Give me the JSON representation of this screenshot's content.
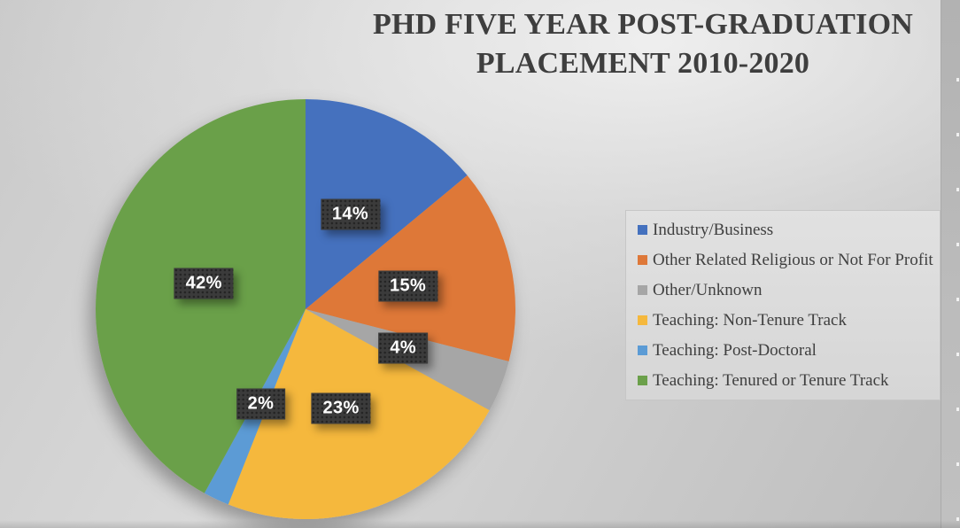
{
  "title": {
    "line1": "PHD FIVE YEAR POST-GRADUATION",
    "line2": "PLACEMENT 2010-2020"
  },
  "chart_data": {
    "type": "pie",
    "title": "PHD FIVE YEAR POST-GRADUATION PLACEMENT 2010-2020",
    "start_angle_deg": 0,
    "direction": "clockwise",
    "legend_position": "right",
    "slices": [
      {
        "label": "Industry/Business",
        "value": 14,
        "data_label": "14%",
        "color": "#4471BE"
      },
      {
        "label": "Other Related Religious or Not For Profit",
        "value": 15,
        "data_label": "15%",
        "color": "#DE7839"
      },
      {
        "label": "Other/Unknown",
        "value": 4,
        "data_label": "4%",
        "color": "#A6A6A6"
      },
      {
        "label": "Teaching: Non-Tenure Track",
        "value": 23,
        "data_label": "23%",
        "color": "#F5B83D"
      },
      {
        "label": "Teaching: Post-Doctoral",
        "value": 2,
        "data_label": "2%",
        "color": "#5B9BD5"
      },
      {
        "label": "Teaching: Tenured or Tenure Track",
        "value": 42,
        "data_label": "42%",
        "color": "#6BA04A"
      }
    ],
    "colors": {
      "data_label_bg": "#3B3B3B",
      "data_label_text": "#FFFFFF",
      "title_text": "#3E3E3E",
      "legend_text": "#3F3F3F",
      "legend_bg": "#DCDCDC"
    }
  }
}
